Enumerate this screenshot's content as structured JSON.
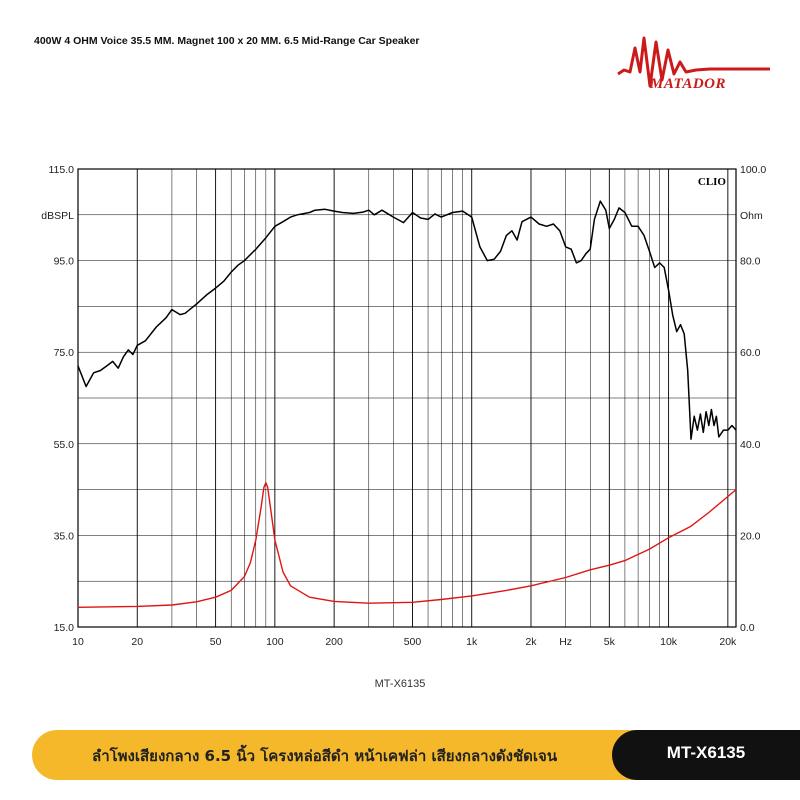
{
  "header": {
    "headline": "400W 4 OHM Voice 35.5 MM. Magnet 100 x 20 MM. 6.5 Mid-Range Car Speaker",
    "brand": "MATADOR",
    "logo_color": "#cc1a1a"
  },
  "chart_data": {
    "type": "line",
    "watermark": "CLIO",
    "caption": "MT-X6135",
    "xaxis": {
      "scale": "log",
      "range": [
        10,
        22000
      ],
      "ticks": [
        {
          "value": 10,
          "label": "10"
        },
        {
          "value": 20,
          "label": "20"
        },
        {
          "value": 50,
          "label": "50"
        },
        {
          "value": 100,
          "label": "100"
        },
        {
          "value": 200,
          "label": "200"
        },
        {
          "value": 500,
          "label": "500"
        },
        {
          "value": 1000,
          "label": "1k"
        },
        {
          "value": 2000,
          "label": "2k"
        },
        {
          "value": 5000,
          "label": "5k"
        },
        {
          "value": 10000,
          "label": "10k"
        },
        {
          "value": 20000,
          "label": "20k"
        }
      ],
      "unit_label": "Hz",
      "unit_position": 3000
    },
    "yaxis_left": {
      "label": "dBSPL",
      "label_value": 105,
      "range": [
        15,
        115
      ],
      "ticks": [
        {
          "value": 115,
          "label": "115.0"
        },
        {
          "value": 95,
          "label": "95.0"
        },
        {
          "value": 75,
          "label": "75.0"
        },
        {
          "value": 55,
          "label": "55.0"
        },
        {
          "value": 35,
          "label": "35.0"
        },
        {
          "value": 15,
          "label": "15.0"
        }
      ]
    },
    "yaxis_right": {
      "label": "Ohm",
      "label_value": 90,
      "range": [
        0,
        100
      ],
      "ticks": [
        {
          "value": 100,
          "label": "100.0"
        },
        {
          "value": 80,
          "label": "80.0"
        },
        {
          "value": 60,
          "label": "60.0"
        },
        {
          "value": 40,
          "label": "40.0"
        },
        {
          "value": 20,
          "label": "20.0"
        },
        {
          "value": 0,
          "label": "0.0"
        }
      ]
    },
    "grid": true,
    "series": [
      {
        "color": "#000000",
        "axis": "left",
        "points": [
          [
            10,
            72
          ],
          [
            11,
            67.5
          ],
          [
            12,
            70.5
          ],
          [
            13,
            71
          ],
          [
            14,
            72
          ],
          [
            15,
            73
          ],
          [
            16,
            71.5
          ],
          [
            17,
            74
          ],
          [
            18,
            75.5
          ],
          [
            19,
            74.5
          ],
          [
            20,
            76.5
          ],
          [
            22,
            77.5
          ],
          [
            25,
            80.5
          ],
          [
            28,
            82.5
          ],
          [
            30,
            84.3
          ],
          [
            33,
            83.2
          ],
          [
            35,
            83.5
          ],
          [
            40,
            85.5
          ],
          [
            45,
            87.5
          ],
          [
            50,
            89
          ],
          [
            55,
            90.5
          ],
          [
            60,
            92.5
          ],
          [
            65,
            94
          ],
          [
            70,
            95
          ],
          [
            80,
            97.5
          ],
          [
            90,
            100
          ],
          [
            100,
            102.5
          ],
          [
            110,
            103.5
          ],
          [
            120,
            104.5
          ],
          [
            130,
            105
          ],
          [
            150,
            105.5
          ],
          [
            160,
            106
          ],
          [
            180,
            106.2
          ],
          [
            200,
            105.8
          ],
          [
            220,
            105.5
          ],
          [
            250,
            105.3
          ],
          [
            280,
            105.6
          ],
          [
            300,
            106
          ],
          [
            320,
            105
          ],
          [
            350,
            106
          ],
          [
            400,
            104.5
          ],
          [
            450,
            103.3
          ],
          [
            500,
            105.5
          ],
          [
            550,
            104.3
          ],
          [
            600,
            104
          ],
          [
            650,
            105.2
          ],
          [
            700,
            104.5
          ],
          [
            800,
            105.5
          ],
          [
            900,
            105.8
          ],
          [
            1000,
            104.5
          ],
          [
            1100,
            98
          ],
          [
            1200,
            95
          ],
          [
            1300,
            95.3
          ],
          [
            1400,
            97
          ],
          [
            1500,
            100.5
          ],
          [
            1600,
            101.5
          ],
          [
            1700,
            99.5
          ],
          [
            1800,
            103.5
          ],
          [
            2000,
            104.5
          ],
          [
            2200,
            103
          ],
          [
            2400,
            102.5
          ],
          [
            2600,
            103
          ],
          [
            2800,
            101.5
          ],
          [
            3000,
            98
          ],
          [
            3200,
            97.5
          ],
          [
            3400,
            94.5
          ],
          [
            3600,
            95
          ],
          [
            3800,
            96.5
          ],
          [
            4000,
            97.5
          ],
          [
            4200,
            104
          ],
          [
            4500,
            108
          ],
          [
            4800,
            106
          ],
          [
            5000,
            102
          ],
          [
            5300,
            104
          ],
          [
            5600,
            106.5
          ],
          [
            6000,
            105.5
          ],
          [
            6500,
            102.5
          ],
          [
            7000,
            102.5
          ],
          [
            7500,
            100.5
          ],
          [
            8000,
            97
          ],
          [
            8500,
            93.5
          ],
          [
            9000,
            94.5
          ],
          [
            9500,
            93.5
          ],
          [
            10000,
            88.5
          ],
          [
            10500,
            83
          ],
          [
            11000,
            79.5
          ],
          [
            11500,
            81
          ],
          [
            12000,
            79
          ],
          [
            12500,
            71
          ],
          [
            13000,
            56
          ],
          [
            13500,
            61
          ],
          [
            14000,
            58
          ],
          [
            14500,
            61.5
          ],
          [
            15000,
            57.5
          ],
          [
            15500,
            62
          ],
          [
            16000,
            59
          ],
          [
            16500,
            62.5
          ],
          [
            17000,
            59
          ],
          [
            17500,
            61
          ],
          [
            18000,
            56.5
          ],
          [
            19000,
            58
          ],
          [
            20000,
            58
          ],
          [
            21000,
            59
          ],
          [
            22000,
            58
          ]
        ]
      },
      {
        "color": "#e01414",
        "axis": "right",
        "points": [
          [
            10,
            4.3
          ],
          [
            20,
            4.5
          ],
          [
            30,
            4.8
          ],
          [
            40,
            5.5
          ],
          [
            50,
            6.5
          ],
          [
            60,
            8
          ],
          [
            70,
            11
          ],
          [
            75,
            14
          ],
          [
            80,
            19
          ],
          [
            85,
            26
          ],
          [
            88,
            30.5
          ],
          [
            90,
            31.5
          ],
          [
            92,
            30.5
          ],
          [
            95,
            26
          ],
          [
            100,
            19
          ],
          [
            110,
            12
          ],
          [
            120,
            9
          ],
          [
            150,
            6.5
          ],
          [
            200,
            5.6
          ],
          [
            300,
            5.2
          ],
          [
            500,
            5.4
          ],
          [
            700,
            6
          ],
          [
            1000,
            6.8
          ],
          [
            1500,
            8
          ],
          [
            2000,
            9
          ],
          [
            3000,
            10.8
          ],
          [
            4000,
            12.5
          ],
          [
            5000,
            13.5
          ],
          [
            6000,
            14.5
          ],
          [
            8000,
            17
          ],
          [
            10000,
            19.5
          ],
          [
            13000,
            22
          ],
          [
            16000,
            25
          ],
          [
            20000,
            28.5
          ],
          [
            22000,
            30
          ]
        ]
      }
    ]
  },
  "banner": {
    "text": "ลำโพงเสียงกลาง 6.5 นิ้ว โครงหล่อสีดำ หน้าเคฟล่า เสียงกลางดังชัดเจน",
    "model": "MT-X6135"
  }
}
